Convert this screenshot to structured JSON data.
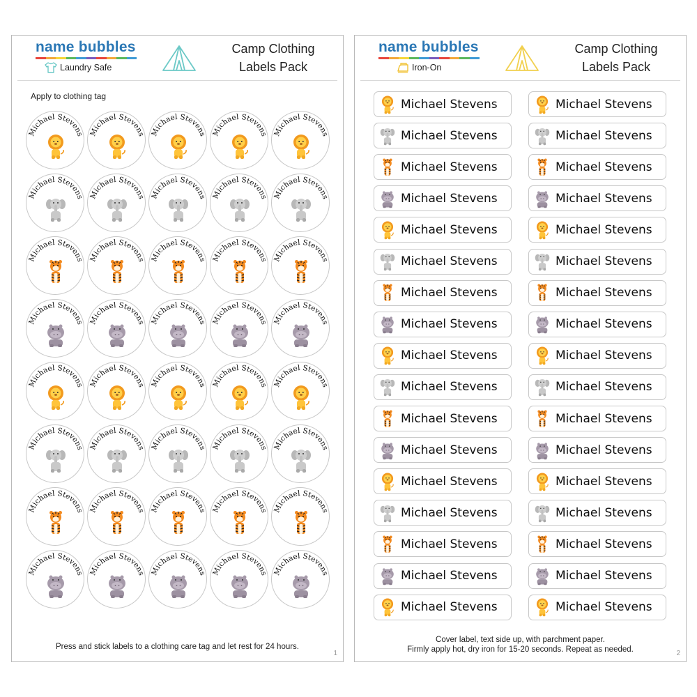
{
  "brand": {
    "name": "name bubbles",
    "dot_colors": [
      "#e8463c",
      "#f3a83b",
      "#f6d63b",
      "#5bb85d",
      "#3f9bd6",
      "#7a5bbd",
      "#e8463c",
      "#f3a83b",
      "#5bb85d",
      "#3f9bd6"
    ]
  },
  "colors": {
    "brand_blue": "#2a77b5",
    "tent_teal": "#6cc9c7",
    "tent_yellow": "#f1d04f",
    "iron_yellow": "#f1c233"
  },
  "sheet1": {
    "subtitle": "Laundry Safe",
    "subtitle_icon": "shirt-icon",
    "pack_title_line1": "Camp Clothing",
    "pack_title_line2": "Labels Pack",
    "instruction_top": "Apply to clothing tag",
    "footer": "Press and stick labels to a clothing care tag and let rest for 24 hours.",
    "page_number": "1",
    "label_name": "Michael Stevens",
    "rows": [
      [
        "lion",
        "lion",
        "lion",
        "lion",
        "lion"
      ],
      [
        "elephant",
        "elephant",
        "elephant",
        "elephant",
        "elephant"
      ],
      [
        "tiger",
        "tiger",
        "tiger",
        "tiger",
        "tiger"
      ],
      [
        "hippo",
        "hippo",
        "hippo",
        "hippo",
        "hippo"
      ],
      [
        "lion",
        "lion",
        "lion",
        "lion",
        "lion"
      ],
      [
        "elephant",
        "elephant",
        "elephant",
        "elephant",
        "elephant"
      ],
      [
        "tiger",
        "tiger",
        "tiger",
        "tiger",
        "tiger"
      ],
      [
        "hippo",
        "hippo",
        "hippo",
        "hippo",
        "hippo"
      ]
    ]
  },
  "sheet2": {
    "subtitle": "Iron-On",
    "subtitle_icon": "iron-icon",
    "pack_title_line1": "Camp Clothing",
    "pack_title_line2": "Labels Pack",
    "footer_line1": "Cover label, text side up, with parchment paper.",
    "footer_line2": "Firmly apply hot, dry iron for 15-20 seconds. Repeat as needed.",
    "page_number": "2",
    "label_name": "Michael Stevens",
    "rows": [
      "lion",
      "elephant",
      "tiger",
      "hippo",
      "lion",
      "elephant",
      "tiger",
      "hippo",
      "lion",
      "elephant",
      "tiger",
      "hippo",
      "lion",
      "elephant",
      "tiger",
      "hippo",
      "lion"
    ]
  }
}
